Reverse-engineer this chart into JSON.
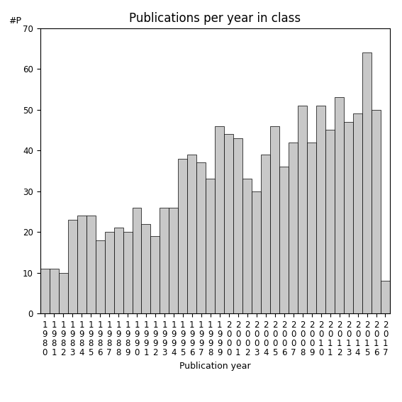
{
  "title": "Publications per year in class",
  "xlabel": "Publication year",
  "ylabel": "#P",
  "years": [
    1980,
    1981,
    1982,
    1983,
    1984,
    1985,
    1986,
    1987,
    1988,
    1989,
    1990,
    1991,
    1992,
    1993,
    1994,
    1995,
    1996,
    1997,
    1998,
    1999,
    2000,
    2001,
    2002,
    2003,
    2004,
    2005,
    2006,
    2007,
    2008,
    2009,
    2010,
    2011,
    2012,
    2013,
    2014,
    2015,
    2016,
    2017
  ],
  "values": [
    11,
    11,
    10,
    23,
    24,
    24,
    18,
    20,
    21,
    20,
    26,
    22,
    19,
    26,
    26,
    38,
    39,
    37,
    33,
    46,
    44,
    43,
    33,
    30,
    39,
    46,
    36,
    42,
    51,
    42,
    51,
    45,
    53,
    47,
    49,
    64,
    50,
    8
  ],
  "bar_color": "#c8c8c8",
  "bar_edge_color": "#000000",
  "ylim": [
    0,
    70
  ],
  "yticks": [
    0,
    10,
    20,
    30,
    40,
    50,
    60,
    70
  ],
  "background_color": "#ffffff",
  "title_fontsize": 12,
  "axis_label_fontsize": 9,
  "tick_fontsize": 8.5
}
